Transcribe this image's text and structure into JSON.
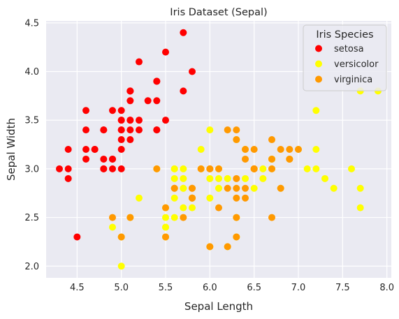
{
  "chart_data": {
    "type": "scatter",
    "title": "Iris Dataset (Sepal)",
    "xlabel": "Sepal Length",
    "ylabel": "Sepal Width",
    "xlim": [
      4.15,
      8.05
    ],
    "ylim": [
      1.88,
      4.52
    ],
    "xticks": [
      4.5,
      5.0,
      5.5,
      6.0,
      6.5,
      7.0,
      7.5,
      8.0
    ],
    "xtick_labels": [
      "4.5",
      "5.0",
      "5.5",
      "6.0",
      "6.5",
      "7.0",
      "7.5",
      "8.0"
    ],
    "yticks": [
      2.0,
      2.5,
      3.0,
      3.5,
      4.0,
      4.5
    ],
    "ytick_labels": [
      "2.0",
      "2.5",
      "3.0",
      "3.5",
      "4.0",
      "4.5"
    ],
    "grid": true,
    "legend": {
      "title": "Iris Species",
      "placement": "top-right"
    },
    "series": [
      {
        "name": "setosa",
        "color": "#ff0000",
        "x": [
          5.1,
          4.9,
          4.7,
          4.6,
          5.0,
          5.4,
          4.6,
          5.0,
          4.4,
          4.9,
          5.4,
          4.8,
          4.8,
          4.3,
          5.8,
          5.7,
          5.4,
          5.1,
          5.7,
          5.1,
          5.4,
          5.1,
          4.6,
          5.1,
          4.8,
          5.0,
          5.0,
          5.2,
          5.2,
          4.7,
          4.8,
          5.4,
          5.2,
          5.5,
          4.9,
          5.0,
          5.5,
          4.9,
          4.4,
          5.1,
          5.0,
          4.5,
          4.4,
          5.0,
          5.1,
          4.8,
          5.1,
          4.6,
          5.3,
          5.0
        ],
        "y": [
          3.5,
          3.0,
          3.2,
          3.1,
          3.6,
          3.9,
          3.4,
          3.4,
          2.9,
          3.1,
          3.7,
          3.4,
          3.0,
          3.0,
          4.0,
          4.4,
          3.9,
          3.5,
          3.8,
          3.8,
          3.4,
          3.7,
          3.6,
          3.3,
          3.4,
          3.0,
          3.4,
          3.5,
          3.4,
          3.2,
          3.1,
          3.4,
          4.1,
          4.2,
          3.1,
          3.2,
          3.5,
          3.6,
          3.0,
          3.4,
          3.5,
          2.3,
          3.2,
          3.5,
          3.8,
          3.0,
          3.8,
          3.2,
          3.7,
          3.3
        ]
      },
      {
        "name": "versicolor",
        "color": "#ffff00",
        "x": [
          7.0,
          6.4,
          6.9,
          5.5,
          6.5,
          5.7,
          6.3,
          4.9,
          6.6,
          5.2,
          5.0,
          5.9,
          6.0,
          6.1,
          5.6,
          6.7,
          5.6,
          5.8,
          6.2,
          5.6,
          5.9,
          6.1,
          6.3,
          6.1,
          6.4,
          6.6,
          6.8,
          6.7,
          6.0,
          5.7,
          5.5,
          5.5,
          5.8,
          6.0,
          5.4,
          6.0,
          6.7,
          6.3,
          5.6,
          5.5,
          5.5,
          6.1,
          5.8,
          5.0,
          5.6,
          5.7,
          5.7,
          6.2,
          5.1,
          5.7,
          7.7,
          7.7,
          7.9,
          7.2,
          7.7,
          7.2,
          7.6,
          7.1,
          7.2,
          7.4,
          7.3
        ],
        "y": [
          3.2,
          3.2,
          3.1,
          2.3,
          2.8,
          2.8,
          3.3,
          2.4,
          2.9,
          2.7,
          2.0,
          3.0,
          2.2,
          2.9,
          2.9,
          3.1,
          3.0,
          2.7,
          2.2,
          2.5,
          3.2,
          2.8,
          2.5,
          2.8,
          2.9,
          3.0,
          2.8,
          3.0,
          2.9,
          2.6,
          2.4,
          2.4,
          2.7,
          2.7,
          3.0,
          3.4,
          3.1,
          2.3,
          3.0,
          2.5,
          2.6,
          3.0,
          2.6,
          2.3,
          2.7,
          3.0,
          2.9,
          2.9,
          2.5,
          2.8,
          3.8,
          2.6,
          3.8,
          3.6,
          2.8,
          3.2,
          3.0,
          3.0,
          3.0,
          2.8,
          2.9
        ]
      },
      {
        "name": "virginica",
        "color": "#ff9900",
        "x": [
          6.3,
          5.8,
          6.5,
          6.3,
          4.9,
          6.7,
          5.8,
          6.5,
          5.7,
          5.8,
          6.4,
          6.5,
          5.6,
          6.0,
          6.9,
          5.6,
          6.3,
          6.7,
          6.2,
          6.1,
          6.4,
          6.0,
          6.3,
          6.5,
          6.2,
          5.9,
          6.9,
          6.7,
          6.4,
          6.8,
          5.8,
          6.9,
          6.5,
          6.1,
          6.0,
          6.3,
          5.5,
          5.4,
          5.0,
          6.3,
          6.2,
          6.7,
          6.8,
          5.5,
          6.3,
          6.4,
          5.1,
          5.8,
          7.0
        ],
        "y": [
          3.3,
          2.7,
          3.0,
          2.9,
          2.5,
          2.5,
          2.8,
          3.2,
          2.5,
          2.8,
          3.2,
          3.0,
          2.8,
          2.2,
          3.2,
          2.8,
          2.7,
          3.3,
          2.8,
          3.0,
          2.8,
          3.0,
          2.8,
          3.0,
          3.4,
          3.0,
          3.1,
          3.1,
          3.1,
          3.2,
          2.7,
          3.1,
          3.0,
          2.6,
          3.0,
          2.5,
          2.3,
          3.0,
          2.3,
          2.3,
          2.2,
          3.0,
          2.8,
          2.6,
          3.4,
          2.7,
          2.5,
          2.7,
          3.2
        ]
      }
    ]
  }
}
